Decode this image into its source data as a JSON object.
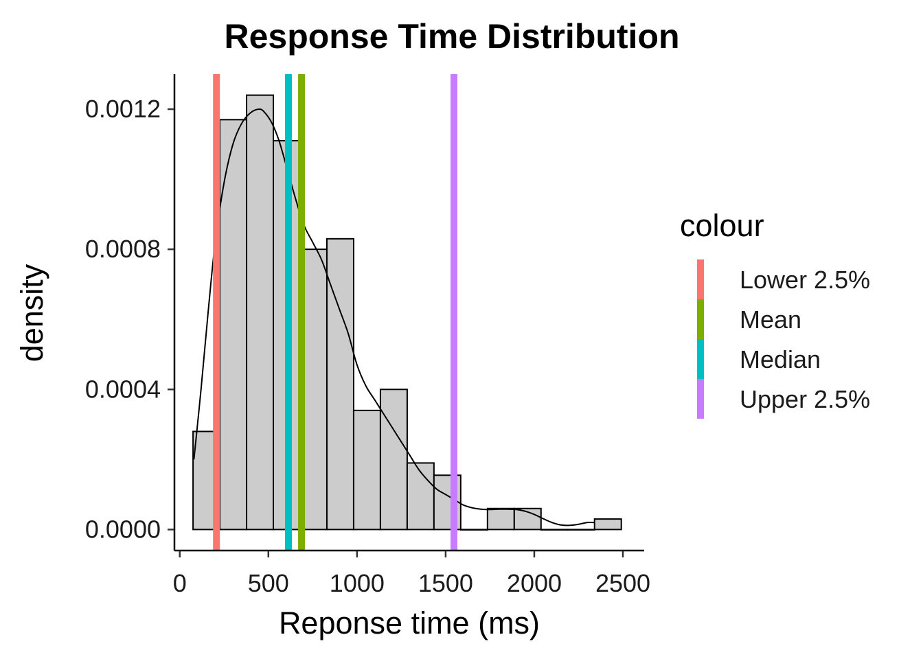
{
  "chart_data": {
    "type": "histogram",
    "title": "Response Time Distribution",
    "xlabel": "Reponse time (ms)",
    "ylabel": "density",
    "xlim": [
      -30,
      2620
    ],
    "ylim": [
      -6e-05,
      0.0013
    ],
    "x_ticks": [
      0,
      500,
      1000,
      1500,
      2000,
      2500
    ],
    "x_tick_labels": [
      "0",
      "500",
      "1000",
      "1500",
      "2000",
      "2500"
    ],
    "y_ticks": [
      0,
      0.0004,
      0.0008,
      0.0012
    ],
    "y_tick_labels": [
      "0.0000",
      "0.0004",
      "0.0008",
      "0.0012"
    ],
    "bins": [
      {
        "x0": 75,
        "x1": 226,
        "density": 0.00028
      },
      {
        "x0": 226,
        "x1": 377,
        "density": 0.00117
      },
      {
        "x0": 377,
        "x1": 528,
        "density": 0.00124
      },
      {
        "x0": 528,
        "x1": 679,
        "density": 0.00111
      },
      {
        "x0": 679,
        "x1": 830,
        "density": 0.0008
      },
      {
        "x0": 830,
        "x1": 981,
        "density": 0.00083
      },
      {
        "x0": 981,
        "x1": 1132,
        "density": 0.00034
      },
      {
        "x0": 1132,
        "x1": 1283,
        "density": 0.0004
      },
      {
        "x0": 1283,
        "x1": 1434,
        "density": 0.00019
      },
      {
        "x0": 1434,
        "x1": 1585,
        "density": 0.000155
      },
      {
        "x0": 1585,
        "x1": 1736,
        "density": 0
      },
      {
        "x0": 1736,
        "x1": 1887,
        "density": 6e-05
      },
      {
        "x0": 1887,
        "x1": 2038,
        "density": 6e-05
      },
      {
        "x0": 2038,
        "x1": 2189,
        "density": 0
      },
      {
        "x0": 2189,
        "x1": 2340,
        "density": 0
      },
      {
        "x0": 2340,
        "x1": 2491,
        "density": 3e-05
      }
    ],
    "density_curve": {
      "x": [
        80,
        120,
        160,
        200,
        250,
        300,
        350,
        400,
        450,
        480,
        520,
        560,
        600,
        650,
        700,
        750,
        800,
        850,
        900,
        950,
        1000,
        1050,
        1100,
        1150,
        1200,
        1250,
        1300,
        1350,
        1400,
        1450,
        1500,
        1550,
        1600,
        1650,
        1700,
        1750,
        1800,
        1850,
        1900,
        1950,
        2000,
        2050,
        2100,
        2150,
        2200,
        2250,
        2300,
        2340
      ],
      "y": [
        0.0002,
        0.0004,
        0.00062,
        0.00082,
        0.00099,
        0.0011,
        0.00116,
        0.00119,
        0.0012,
        0.00119,
        0.00116,
        0.00111,
        0.00104,
        0.00095,
        0.00087,
        0.00082,
        0.00077,
        0.0007,
        0.00063,
        0.00056,
        0.00047,
        0.00041,
        0.00037,
        0.00033,
        0.00029,
        0.00025,
        0.00021,
        0.00017,
        0.00014,
        0.000115,
        0.0001,
        8.5e-05,
        7e-05,
        6.2e-05,
        5.8e-05,
        5.7e-05,
        5.8e-05,
        5.8e-05,
        5.7e-05,
        5.2e-05,
        4.3e-05,
        3.1e-05,
        2e-05,
        1.3e-05,
        1.2e-05,
        1.5e-05,
        2e-05,
        2e-05
      ]
    },
    "vlines": [
      {
        "name": "Lower 2.5%",
        "x": 207,
        "color": "#F8766D"
      },
      {
        "name": "Mean",
        "x": 687,
        "color": "#7CAE00"
      },
      {
        "name": "Median",
        "x": 613,
        "color": "#00BFC4"
      },
      {
        "name": "Upper 2.5%",
        "x": 1547,
        "color": "#C77CFF"
      }
    ],
    "legend": {
      "title": "colour",
      "placement": "right",
      "items": [
        {
          "label": "Lower 2.5%",
          "color": "#F8766D"
        },
        {
          "label": "Mean",
          "color": "#7CAE00"
        },
        {
          "label": "Median",
          "color": "#00BFC4"
        },
        {
          "label": "Upper 2.5%",
          "color": "#C77CFF"
        }
      ]
    },
    "bar_fill": "#CCCCCC",
    "bar_stroke": "#000000",
    "grid": false
  }
}
